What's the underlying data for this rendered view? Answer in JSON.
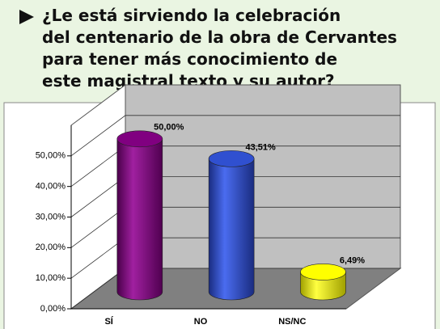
{
  "chart_data": {
    "type": "bar3d",
    "title": [
      "¿Le está sirviendo la celebración",
      "del centenario de la obra de Cervantes",
      "para tener más conocimiento de",
      "este magistral texto y su autor?"
    ],
    "categories": [
      "SÍ",
      "NO",
      "NS/NC"
    ],
    "values": [
      50,
      43.51,
      6.49
    ],
    "value_labels": [
      "50,00%",
      "43,51%",
      "6,49%"
    ],
    "colors": [
      "#800080",
      "#3050d0",
      "#ffff00"
    ],
    "ylim": [
      0,
      60
    ],
    "yticks": [
      {
        "value": 0,
        "label": "0,00%"
      },
      {
        "value": 10,
        "label": "10,00%"
      },
      {
        "value": 20,
        "label": "20,00%"
      },
      {
        "value": 30,
        "label": "30,00%"
      },
      {
        "value": 40,
        "label": "40,00%"
      },
      {
        "value": 50,
        "label": "50,00%"
      }
    ],
    "grid": true
  }
}
